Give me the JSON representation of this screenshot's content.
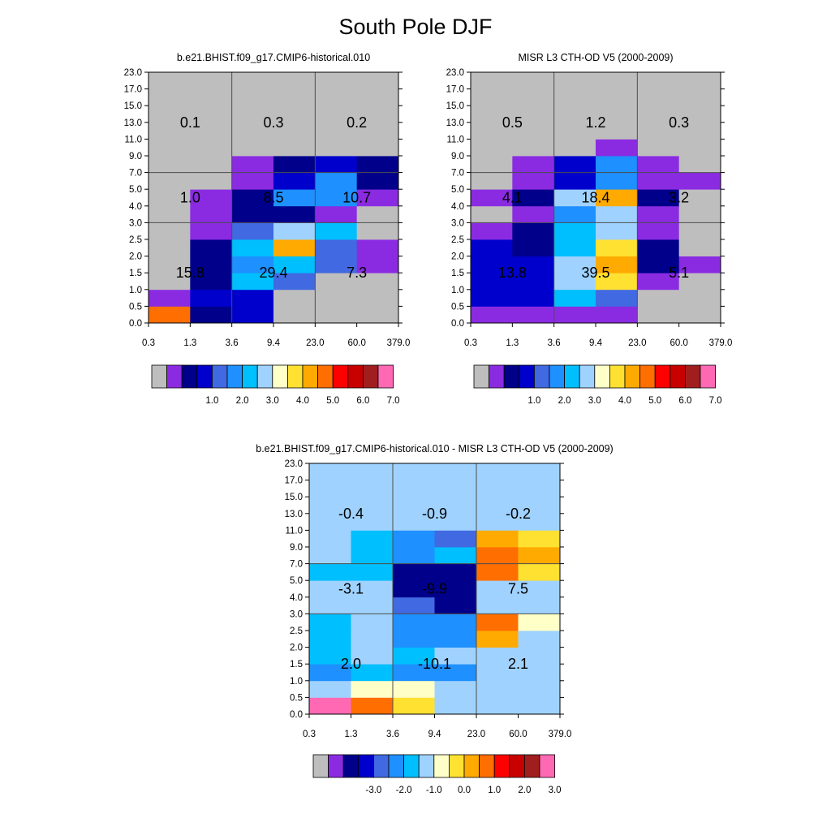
{
  "page": {
    "title": "South Pole DJF"
  },
  "palette": {
    "cmap": [
      "#bebebe",
      "#8a2be2",
      "#00008b",
      "#0000cd",
      "#4169e1",
      "#1e90ff",
      "#00bfff",
      "#a0d2ff",
      "#ffffc8",
      "#ffe132",
      "#ffaa00",
      "#ff6e00",
      "#ff0000",
      "#c80000",
      "#a01e1e",
      "#ff69b4"
    ],
    "gray": "#bebebe",
    "line_color": "#4d4d4d"
  },
  "chart_data": [
    {
      "type": "heatmap",
      "title": "b.e21.BHIST.f09_g17.CMIP6-historical.010",
      "xticks": [
        "0.3",
        "1.3",
        "3.6",
        "9.4",
        "23.0",
        "60.0",
        "379.0"
      ],
      "yticks": [
        "0.0",
        "0.5",
        "1.0",
        "1.5",
        "2.0",
        "2.5",
        "3.0",
        "4.0",
        "5.0",
        "7.0",
        "9.0",
        "11.0",
        "13.0",
        "15.0",
        "17.0",
        "23.0"
      ],
      "cells": [
        [
          11,
          2,
          3,
          0,
          0,
          0
        ],
        [
          1,
          3,
          3,
          0,
          0,
          0
        ],
        [
          0,
          2,
          6,
          4,
          0,
          0
        ],
        [
          0,
          2,
          5,
          6,
          4,
          1
        ],
        [
          0,
          2,
          6,
          10,
          4,
          1
        ],
        [
          0,
          1,
          4,
          7,
          6,
          0
        ],
        [
          0,
          1,
          2,
          2,
          1,
          0
        ],
        [
          0,
          1,
          2,
          5,
          5,
          1
        ],
        [
          0,
          0,
          1,
          3,
          5,
          2
        ],
        [
          0,
          0,
          1,
          2,
          3,
          2
        ],
        [
          0,
          0,
          0,
          0,
          0,
          0
        ],
        [
          0,
          0,
          0,
          0,
          0,
          0
        ],
        [
          0,
          0,
          0,
          0,
          0,
          0
        ],
        [
          0,
          0,
          0,
          0,
          0,
          0
        ],
        [
          0,
          0,
          0,
          0,
          0,
          0
        ]
      ],
      "block_values": [
        [
          "15.8",
          "29.4",
          "7.3"
        ],
        [
          "1.0",
          "8.5",
          "10.7"
        ],
        [
          "0.1",
          "0.3",
          "0.2"
        ]
      ],
      "colorbar_labels": [
        "1.0",
        "2.0",
        "3.0",
        "4.0",
        "5.0",
        "6.0",
        "7.0"
      ]
    },
    {
      "type": "heatmap",
      "title": "MISR L3 CTH-OD V5 (2000-2009)",
      "xticks": [
        "0.3",
        "1.3",
        "3.6",
        "9.4",
        "23.0",
        "60.0",
        "379.0"
      ],
      "yticks": [
        "0.0",
        "0.5",
        "1.0",
        "1.5",
        "2.0",
        "2.5",
        "3.0",
        "4.0",
        "5.0",
        "7.0",
        "9.0",
        "11.0",
        "13.0",
        "15.0",
        "17.0",
        "23.0"
      ],
      "cells": [
        [
          1,
          1,
          1,
          1,
          0,
          0
        ],
        [
          3,
          3,
          6,
          4,
          0,
          0
        ],
        [
          3,
          3,
          7,
          9,
          1,
          0
        ],
        [
          3,
          3,
          7,
          10,
          2,
          1
        ],
        [
          3,
          2,
          6,
          9,
          2,
          0
        ],
        [
          1,
          2,
          6,
          7,
          1,
          0
        ],
        [
          0,
          1,
          5,
          7,
          1,
          0
        ],
        [
          1,
          2,
          7,
          10,
          2,
          0
        ],
        [
          0,
          1,
          3,
          5,
          1,
          1
        ],
        [
          0,
          1,
          3,
          5,
          1,
          0
        ],
        [
          0,
          0,
          0,
          1,
          0,
          0
        ],
        [
          0,
          0,
          0,
          0,
          0,
          0
        ],
        [
          0,
          0,
          0,
          0,
          0,
          0
        ],
        [
          0,
          0,
          0,
          0,
          0,
          0
        ],
        [
          0,
          0,
          0,
          0,
          0,
          0
        ]
      ],
      "block_values": [
        [
          "13.8",
          "39.5",
          "5.1"
        ],
        [
          "4.1",
          "18.4",
          "3.2"
        ],
        [
          "0.5",
          "1.2",
          "0.3"
        ]
      ],
      "colorbar_labels": [
        "1.0",
        "2.0",
        "3.0",
        "4.0",
        "5.0",
        "6.0",
        "7.0"
      ]
    },
    {
      "type": "heatmap",
      "title": "b.e21.BHIST.f09_g17.CMIP6-historical.010 - MISR L3 CTH-OD V5 (2000-2009)",
      "xticks": [
        "0.3",
        "1.3",
        "3.6",
        "9.4",
        "23.0",
        "60.0",
        "379.0"
      ],
      "yticks": [
        "0.0",
        "0.5",
        "1.0",
        "1.5",
        "2.0",
        "2.5",
        "3.0",
        "4.0",
        "5.0",
        "7.0",
        "9.0",
        "11.0",
        "13.0",
        "15.0",
        "17.0",
        "23.0"
      ],
      "cells": [
        [
          15,
          11,
          9,
          7,
          7,
          7
        ],
        [
          7,
          8,
          8,
          7,
          7,
          7
        ],
        [
          5,
          6,
          5,
          5,
          7,
          7
        ],
        [
          6,
          7,
          6,
          7,
          7,
          7
        ],
        [
          6,
          7,
          5,
          5,
          10,
          7
        ],
        [
          6,
          7,
          5,
          5,
          11,
          8
        ],
        [
          7,
          7,
          4,
          2,
          7,
          7
        ],
        [
          7,
          7,
          2,
          2,
          7,
          7
        ],
        [
          6,
          6,
          2,
          2,
          11,
          9
        ],
        [
          7,
          6,
          5,
          6,
          11,
          10
        ],
        [
          7,
          6,
          5,
          4,
          10,
          9
        ],
        [
          7,
          7,
          7,
          7,
          7,
          7
        ],
        [
          7,
          7,
          7,
          7,
          7,
          7
        ],
        [
          7,
          7,
          7,
          7,
          7,
          7
        ],
        [
          7,
          7,
          7,
          7,
          7,
          7
        ]
      ],
      "block_values": [
        [
          "2.0",
          "-10.1",
          "2.1"
        ],
        [
          "-3.1",
          "-9.9",
          "7.5"
        ],
        [
          "-0.4",
          "-0.9",
          "-0.2"
        ]
      ],
      "colorbar_labels": [
        "-3.0",
        "-2.0",
        "-1.0",
        "0.0",
        "1.0",
        "2.0",
        "3.0"
      ]
    }
  ]
}
